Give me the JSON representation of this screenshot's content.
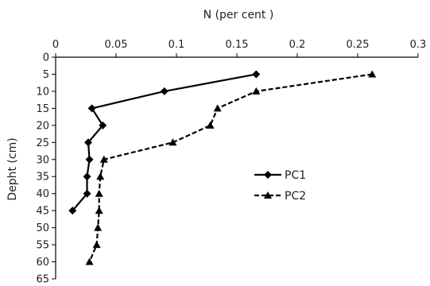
{
  "chart_data": {
    "type": "line",
    "title": "",
    "xlabel": "N (per cent )",
    "ylabel": "Depht (cm)",
    "x_axis_position": "top",
    "y_axis_inverted": true,
    "xlim": [
      0,
      0.3
    ],
    "ylim": [
      0,
      65
    ],
    "x_ticks": [
      0,
      0.05,
      0.1,
      0.15,
      0.2,
      0.25,
      0.3
    ],
    "x_tick_labels": [
      "0",
      "0.05",
      "0.1",
      "0.15",
      "0.2",
      "0.25",
      "0.3"
    ],
    "y_ticks": [
      0,
      5,
      10,
      15,
      20,
      25,
      30,
      35,
      40,
      45,
      50,
      55,
      60,
      65
    ],
    "y_tick_labels": [
      "0",
      "5",
      "10",
      "15",
      "20",
      "25",
      "30",
      "35",
      "40",
      "45",
      "50",
      "55",
      "60",
      "65"
    ],
    "grid": false,
    "legend": "center-right",
    "series": [
      {
        "name": "PC1",
        "marker": "diamond",
        "line_style": "solid",
        "color": "#000000",
        "points": [
          {
            "x": 0.166,
            "y": 5
          },
          {
            "x": 0.09,
            "y": 10
          },
          {
            "x": 0.03,
            "y": 15
          },
          {
            "x": 0.039,
            "y": 20
          },
          {
            "x": 0.027,
            "y": 25
          },
          {
            "x": 0.028,
            "y": 30
          },
          {
            "x": 0.026,
            "y": 35
          },
          {
            "x": 0.026,
            "y": 40
          },
          {
            "x": 0.014,
            "y": 45
          }
        ]
      },
      {
        "name": "PC2",
        "marker": "triangle",
        "line_style": "dashed",
        "color": "#000000",
        "points": [
          {
            "x": 0.262,
            "y": 5
          },
          {
            "x": 0.166,
            "y": 10
          },
          {
            "x": 0.134,
            "y": 15
          },
          {
            "x": 0.128,
            "y": 20
          },
          {
            "x": 0.097,
            "y": 25
          },
          {
            "x": 0.04,
            "y": 30
          },
          {
            "x": 0.037,
            "y": 35
          },
          {
            "x": 0.036,
            "y": 40
          },
          {
            "x": 0.036,
            "y": 45
          },
          {
            "x": 0.035,
            "y": 50
          },
          {
            "x": 0.034,
            "y": 55
          },
          {
            "x": 0.028,
            "y": 60
          }
        ]
      }
    ]
  }
}
